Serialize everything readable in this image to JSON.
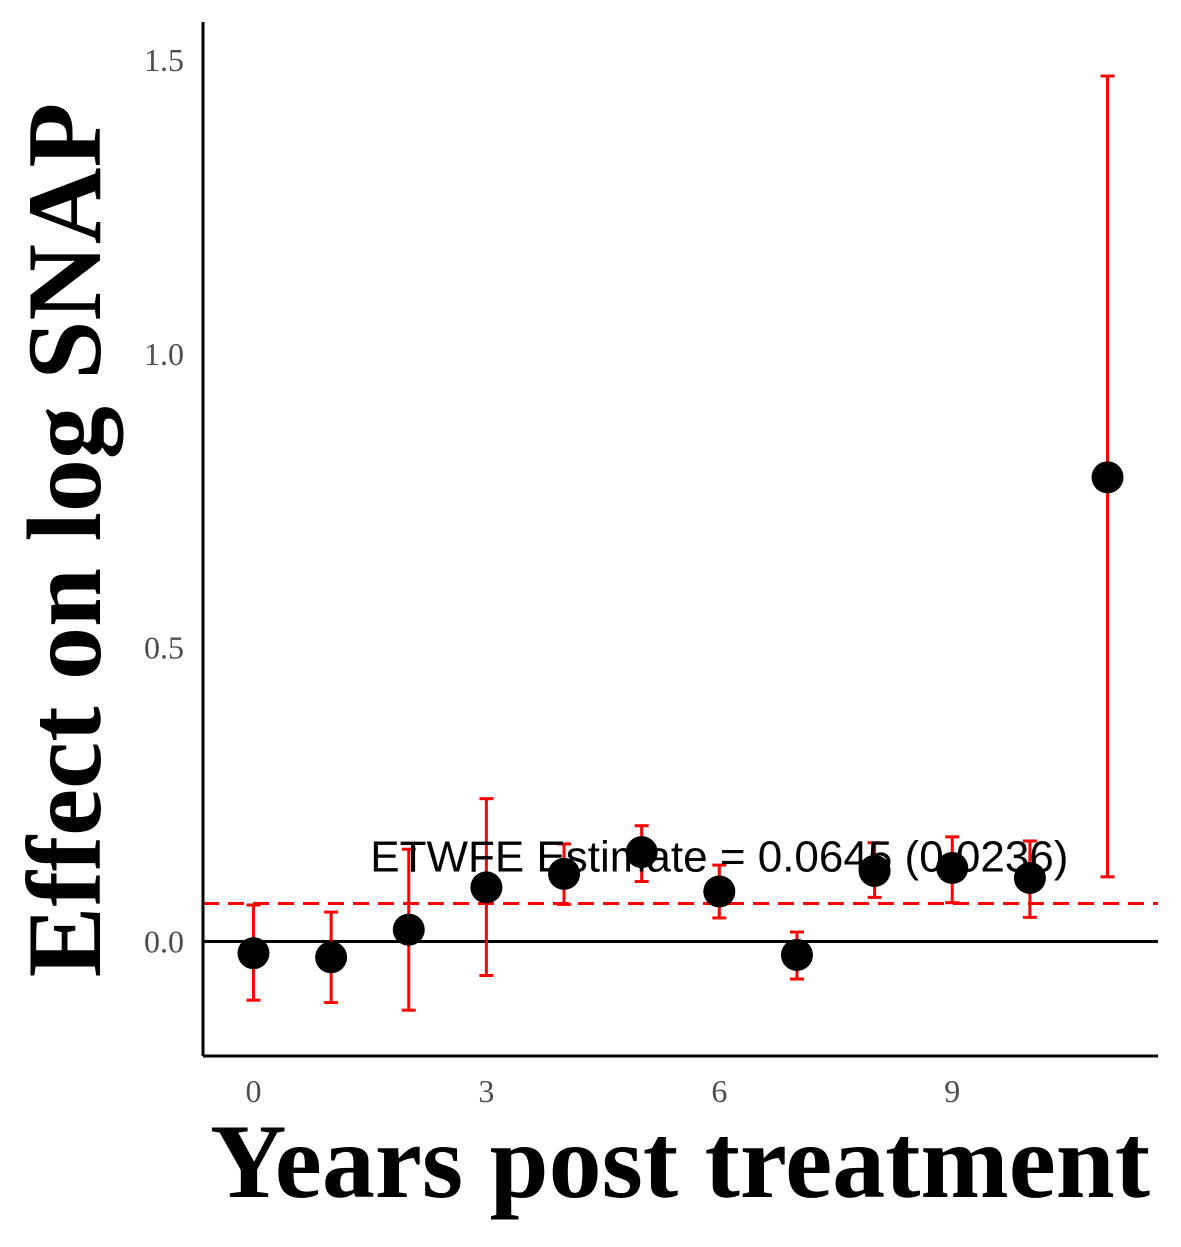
{
  "chart_data": {
    "type": "scatter",
    "xlabel": "Years post treatment",
    "ylabel": "Effect on log SNAP",
    "x": [
      0,
      1,
      2,
      3,
      4,
      5,
      6,
      7,
      8,
      9,
      10,
      11
    ],
    "estimates": [
      -0.02,
      -0.027,
      0.02,
      0.092,
      0.115,
      0.152,
      0.085,
      -0.023,
      0.12,
      0.125,
      0.108,
      0.79
    ],
    "ci_lower": [
      -0.1,
      -0.104,
      -0.117,
      -0.058,
      0.063,
      0.102,
      0.04,
      -0.064,
      0.075,
      0.066,
      0.041,
      0.11
    ],
    "ci_upper": [
      0.062,
      0.05,
      0.157,
      0.243,
      0.166,
      0.197,
      0.13,
      0.016,
      0.168,
      0.178,
      0.171,
      1.473
    ],
    "xlim": [
      -0.65,
      11.65
    ],
    "ylim": [
      -0.195,
      1.565
    ],
    "xticks": [
      "0",
      "3",
      "6",
      "9"
    ],
    "xtick_values": [
      0,
      3,
      6,
      9
    ],
    "yticks": [
      "0.0",
      "0.5",
      "1.0",
      "1.5"
    ],
    "ytick_values": [
      0,
      0.5,
      1.0,
      1.5
    ],
    "reference_lines": {
      "zero": 0,
      "etwfe": 0.0645
    },
    "annotation": {
      "text": "ETWFE Estimate = 0.0645 (0.0236)",
      "x": 6,
      "y": 0.145
    },
    "grid": false,
    "colors": {
      "points": "#000000",
      "error_bars": "#ff0000",
      "etwfe_line": "#ff0000",
      "zero_line": "#000000",
      "axes": "#000000"
    }
  }
}
